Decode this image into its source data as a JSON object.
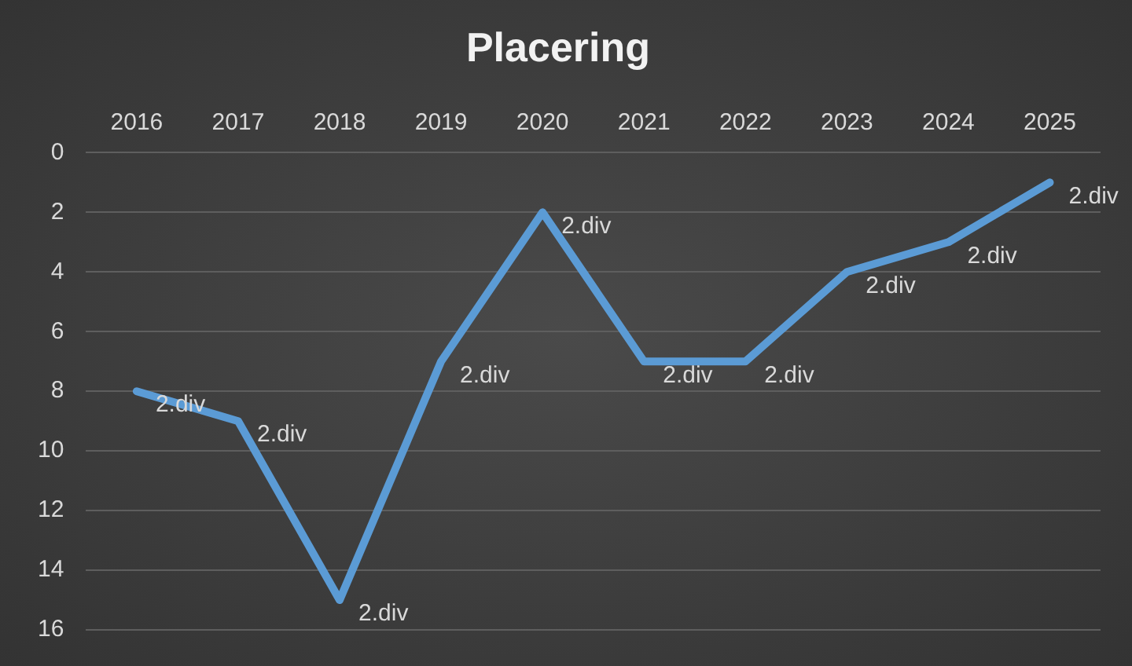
{
  "chart_data": {
    "type": "line",
    "title": "Placering",
    "categories": [
      "2016",
      "2017",
      "2018",
      "2019",
      "2020",
      "2021",
      "2022",
      "2023",
      "2024",
      "2025"
    ],
    "series": [
      {
        "color": "#5b9bd5",
        "values": [
          8,
          9,
          15,
          7,
          2,
          7,
          7,
          4,
          3,
          1
        ]
      }
    ],
    "annotations": [
      {
        "text": "2.div",
        "x": "2016",
        "y": 8
      },
      {
        "text": "2.div",
        "x": "2017",
        "y": 9
      },
      {
        "text": "2.div",
        "x": "2018",
        "y": 15
      },
      {
        "text": "2.div",
        "x": "2019",
        "y": 7
      },
      {
        "text": "2.div",
        "x": "2020",
        "y": 2
      },
      {
        "text": "2.div",
        "x": "2021",
        "y": 7
      },
      {
        "text": "2.div",
        "x": "2022",
        "y": 7
      },
      {
        "text": "2.div",
        "x": "2023",
        "y": 4
      },
      {
        "text": "2.div",
        "x": "2024",
        "y": 3
      },
      {
        "text": "2.div",
        "x": "2025",
        "y": 1
      }
    ],
    "ylim": [
      16,
      0
    ],
    "yticks": [
      0,
      2,
      4,
      6,
      8,
      10,
      12,
      14,
      16
    ],
    "grid": "y",
    "legend": false,
    "marker": "none",
    "line_style": "solid"
  }
}
